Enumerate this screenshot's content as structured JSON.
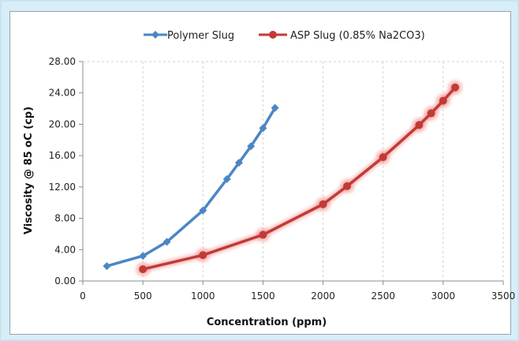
{
  "chart_data": {
    "type": "line",
    "xlabel": "Concentration (ppm)",
    "ylabel": "Viscosity @ 85 oC (cp)",
    "xlim": [
      0,
      3500
    ],
    "ylim": [
      0,
      28
    ],
    "x_ticks": [
      "0",
      "500",
      "1000",
      "1500",
      "2000",
      "2500",
      "3000",
      "3500"
    ],
    "y_ticks": [
      "0.00",
      "4.00",
      "8.00",
      "12.00",
      "16.00",
      "20.00",
      "24.00",
      "28.00"
    ],
    "grid": "vertical dashed",
    "legend": "top-center",
    "series": [
      {
        "name": "Polymer Slug",
        "color": "#4a86c5",
        "marker": "diamond",
        "points": [
          [
            200,
            1.9
          ],
          [
            500,
            3.2
          ],
          [
            700,
            5.0
          ],
          [
            1000,
            9.0
          ],
          [
            1200,
            13.0
          ],
          [
            1300,
            15.1
          ],
          [
            1400,
            17.2
          ],
          [
            1500,
            19.5
          ],
          [
            1600,
            22.1
          ]
        ]
      },
      {
        "name": "ASP Slug (0.85% Na2CO3)",
        "color": "#c23a36",
        "marker": "circle",
        "points": [
          [
            500,
            1.5
          ],
          [
            1000,
            3.3
          ],
          [
            1500,
            5.9
          ],
          [
            2000,
            9.8
          ],
          [
            2200,
            12.1
          ],
          [
            2500,
            15.8
          ],
          [
            2800,
            19.9
          ],
          [
            2900,
            21.4
          ],
          [
            3000,
            23.0
          ],
          [
            3100,
            24.7
          ]
        ]
      }
    ]
  }
}
